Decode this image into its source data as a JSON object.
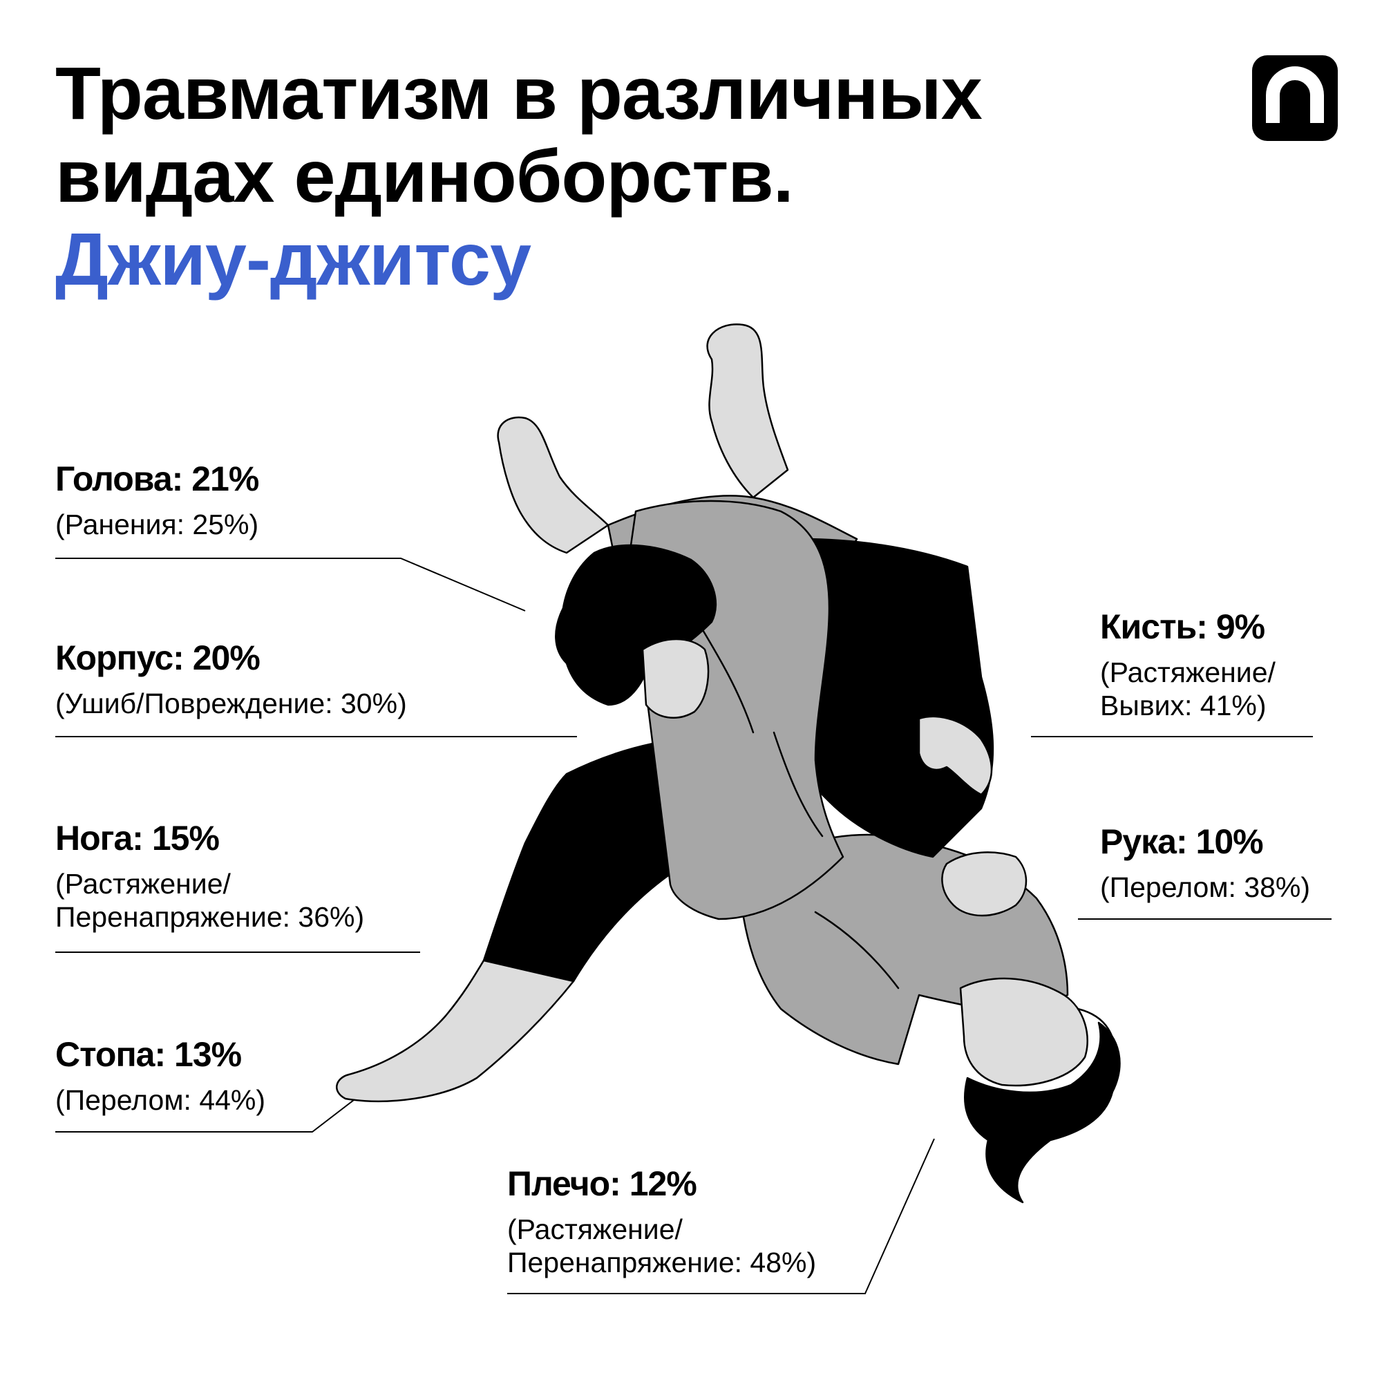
{
  "title": {
    "line1": "Травматизм в различных",
    "line2": "видах единоборств.",
    "line3": "Джиу-джитсу"
  },
  "logo": {
    "icon": "brand-logo-icon",
    "color": "#000000"
  },
  "accent_color": "#3a5fcd",
  "illustration": {
    "icon": "jiu-jitsu-fighters-illustration"
  },
  "stats": {
    "head": {
      "label": "Голова: 21%",
      "detail": [
        "(Ранения: 25%)"
      ]
    },
    "torso": {
      "label": "Корпус: 20%",
      "detail": [
        "(Ушиб/Повреждение: 30%)"
      ]
    },
    "leg": {
      "label": "Нога: 15%",
      "detail": [
        "(Растяжение/",
        "Перенапряжение: 36%)"
      ]
    },
    "foot": {
      "label": "Стопа: 13%",
      "detail": [
        "(Перелом: 44%)"
      ]
    },
    "hand": {
      "label": "Кисть: 9%",
      "detail": [
        "(Растяжение/",
        "Вывих: 41%)"
      ]
    },
    "arm": {
      "label": "Рука: 10%",
      "detail": [
        "(Перелом: 38%)"
      ]
    },
    "shoulder": {
      "label": "Плечо: 12%",
      "detail": [
        "(Растяжение/",
        "Перенапряжение: 48%)"
      ]
    }
  }
}
